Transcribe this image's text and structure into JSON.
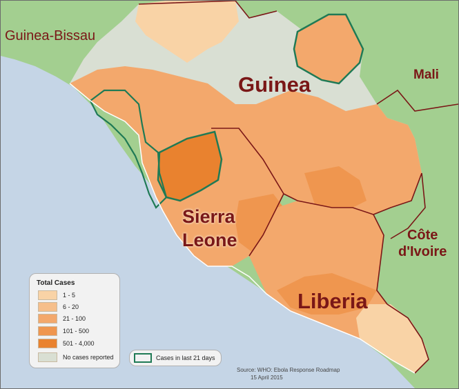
{
  "map": {
    "labels": {
      "guinea_bissau": "Guinea-Bissau",
      "guinea": "Guinea",
      "mali": "Mali",
      "sierra_leone_1": "Sierra",
      "sierra_leone_2": "Leone",
      "cote_divoire_1": "Côte",
      "cote_divoire_2": "d'Ivoire",
      "liberia": "Liberia"
    },
    "colors": {
      "ocean": "#c5d5e6",
      "land_outside": "#a3cf90",
      "no_cases": "#d9dfd3",
      "cases_1_5": "#f9d3a6",
      "cases_6_20": "#f6bf8b",
      "cases_21_100": "#f3a86c",
      "cases_101_500": "#ef964f",
      "cases_501_4000": "#e9822f",
      "border": "#7a1717",
      "recent_outline": "#1f7a55"
    }
  },
  "legend": {
    "title": "Total Cases",
    "items": [
      {
        "label": "1 - 5",
        "color": "#f9d3a6"
      },
      {
        "label": "6 - 20",
        "color": "#f6bf8b"
      },
      {
        "label": "21 - 100",
        "color": "#f3a86c"
      },
      {
        "label": "101 - 500",
        "color": "#ef964f"
      },
      {
        "label": "501 - 4,000",
        "color": "#e9822f"
      },
      {
        "label": "No cases reported",
        "color": "#d9dfd3"
      }
    ],
    "recent_label": "Cases in last 21 days"
  },
  "source": {
    "line1": "Source:  WHO: Ebola Response Roadmap",
    "line2": "15 April 2015"
  }
}
